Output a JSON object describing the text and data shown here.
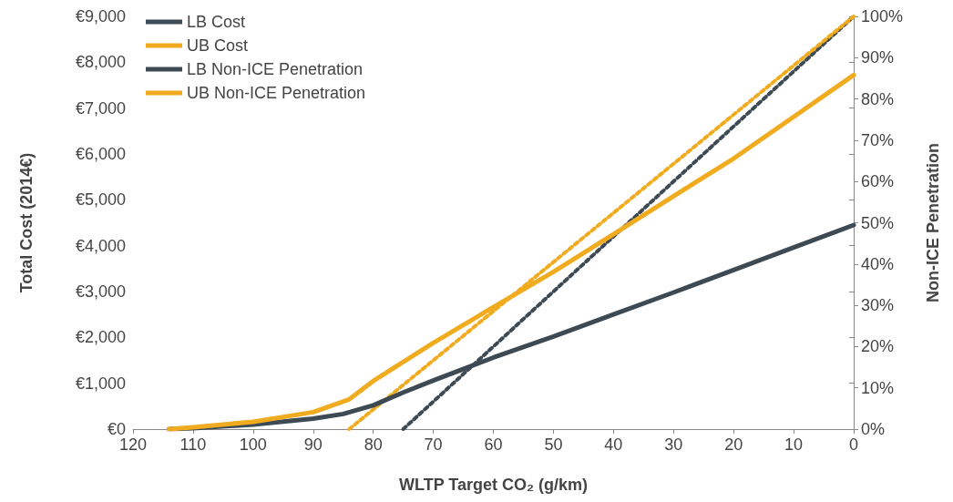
{
  "chart_data": {
    "type": "line",
    "xlabel": "WLTP Target CO₂ (g/km)",
    "ylabel": "Total Cost (2014€)",
    "y2label": "Non-ICE Penetration",
    "x": [
      114,
      110,
      100,
      90,
      85,
      80,
      75,
      70,
      60,
      50,
      40,
      30,
      20,
      10,
      0
    ],
    "series": [
      {
        "name": "LB Cost",
        "color": "#3d4a54",
        "values": [
          0,
          20,
          100,
          230,
          330,
          520,
          800,
          1060,
          1560,
          2020,
          2500,
          2980,
          3470,
          3960,
          4450
        ]
      },
      {
        "name": "UB Cost",
        "color": "#f0ab1e",
        "x": [
          114,
          110,
          100,
          90,
          84,
          80,
          70,
          60,
          50,
          40,
          30,
          20,
          10,
          0
        ],
        "values": [
          0,
          40,
          160,
          370,
          650,
          1050,
          1880,
          2660,
          3430,
          4250,
          5080,
          5900,
          6810,
          7720
        ]
      },
      {
        "name": "LB Non-ICE Penetration",
        "color": "#3d4a54",
        "axis": "y2",
        "line_style": "dotted",
        "x": [
          75,
          0
        ],
        "values": [
          0,
          100
        ]
      },
      {
        "name": "UB Non-ICE Penetration",
        "color": "#f0ab1e",
        "axis": "y2",
        "line_style": "dotted",
        "x": [
          84,
          0
        ],
        "values": [
          0,
          100
        ]
      }
    ],
    "xlim": [
      120,
      0
    ],
    "xticks": [
      120,
      110,
      100,
      90,
      80,
      70,
      60,
      50,
      40,
      30,
      20,
      10,
      0
    ],
    "ylim": [
      0,
      9000
    ],
    "yticks": [
      {
        "value": 0,
        "label": "€0"
      },
      {
        "value": 1000,
        "label": "€1,000"
      },
      {
        "value": 2000,
        "label": "€2,000"
      },
      {
        "value": 3000,
        "label": "€3,000"
      },
      {
        "value": 4000,
        "label": "€4,000"
      },
      {
        "value": 5000,
        "label": "€5,000"
      },
      {
        "value": 6000,
        "label": "€6,000"
      },
      {
        "value": 7000,
        "label": "€7,000"
      },
      {
        "value": 8000,
        "label": "€8,000"
      },
      {
        "value": 9000,
        "label": "€9,000"
      }
    ],
    "y2lim": [
      0,
      100
    ],
    "y2ticks": [
      {
        "value": 0,
        "label": "0%"
      },
      {
        "value": 10,
        "label": "10%"
      },
      {
        "value": 20,
        "label": "20%"
      },
      {
        "value": 30,
        "label": "30%"
      },
      {
        "value": 40,
        "label": "40%"
      },
      {
        "value": 50,
        "label": "50%"
      },
      {
        "value": 60,
        "label": "60%"
      },
      {
        "value": 70,
        "label": "70%"
      },
      {
        "value": 80,
        "label": "80%"
      },
      {
        "value": 90,
        "label": "90%"
      },
      {
        "value": 100,
        "label": "100%"
      }
    ],
    "legend": "top left",
    "marker": "none",
    "line_style": "solid",
    "grid": false
  }
}
